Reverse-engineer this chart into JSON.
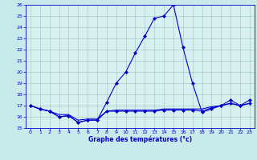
{
  "xlabel": "Graphe des températures (°c)",
  "x": [
    0,
    1,
    2,
    3,
    4,
    5,
    6,
    7,
    8,
    9,
    10,
    11,
    12,
    13,
    14,
    15,
    16,
    17,
    18,
    19,
    20,
    21,
    22,
    23
  ],
  "line1": [
    17.0,
    16.7,
    16.5,
    16.0,
    16.1,
    15.5,
    15.7,
    15.7,
    17.3,
    19.0,
    20.0,
    21.7,
    23.2,
    24.8,
    25.0,
    26.0,
    22.2,
    19.0,
    16.4,
    16.7,
    17.0,
    17.5,
    17.0,
    17.5
  ],
  "line2": [
    17.0,
    16.7,
    16.5,
    16.0,
    16.1,
    15.5,
    15.7,
    15.7,
    16.5,
    16.5,
    16.5,
    16.5,
    16.5,
    16.5,
    16.6,
    16.6,
    16.6,
    16.6,
    16.5,
    16.8,
    17.0,
    17.2,
    17.0,
    17.2
  ],
  "line3": [
    17.0,
    16.7,
    16.5,
    16.2,
    16.2,
    15.7,
    15.8,
    15.8,
    16.5,
    16.6,
    16.6,
    16.6,
    16.6,
    16.6,
    16.7,
    16.7,
    16.7,
    16.7,
    16.7,
    16.9,
    17.0,
    17.2,
    17.0,
    17.2
  ],
  "line_color": "#0000cc",
  "bg_color": "#c8eaea",
  "plot_bg": "#d8f0f0",
  "grid_color": "#aacccc",
  "ylim": [
    15,
    26
  ],
  "xlim": [
    -0.5,
    23.5
  ],
  "yticks": [
    15,
    16,
    17,
    18,
    19,
    20,
    21,
    22,
    23,
    24,
    25,
    26
  ],
  "xticks": [
    0,
    1,
    2,
    3,
    4,
    5,
    6,
    7,
    8,
    9,
    10,
    11,
    12,
    13,
    14,
    15,
    16,
    17,
    18,
    19,
    20,
    21,
    22,
    23
  ],
  "marker": "D",
  "markersize": 2,
  "linewidth": 0.8,
  "tick_fontsize": 4.5,
  "label_fontsize": 5.5
}
